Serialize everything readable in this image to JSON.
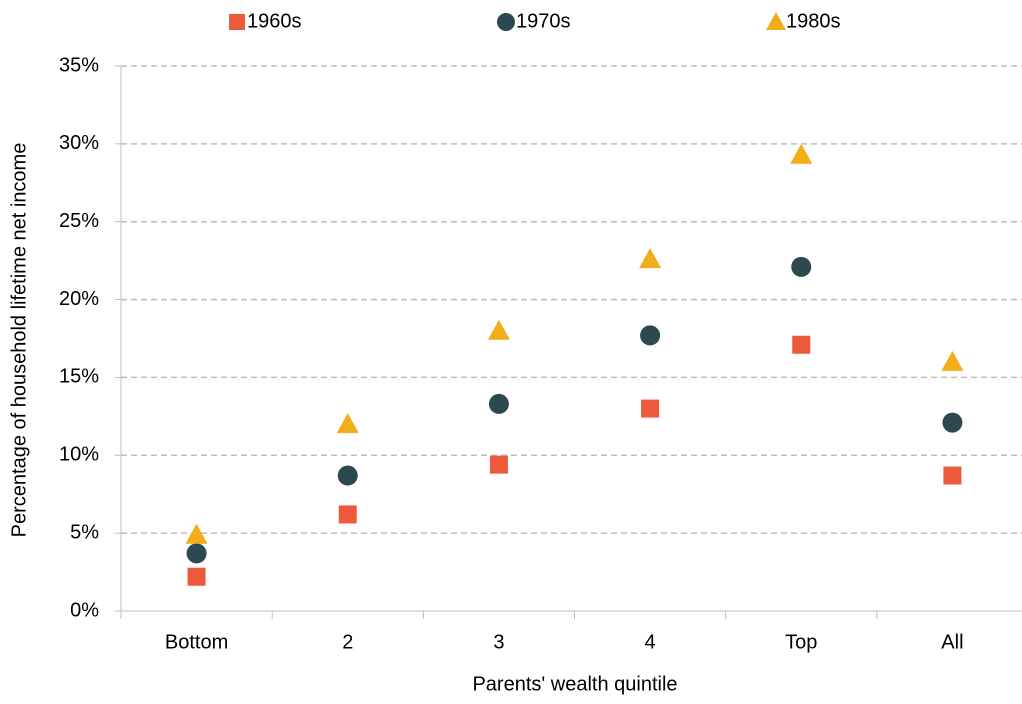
{
  "chart_data": {
    "type": "scatter",
    "x_label": "Parents' wealth quintile",
    "y_label": "Percentage of household lifetime net income",
    "categories": [
      "Bottom",
      "2",
      "3",
      "4",
      "Top",
      "All"
    ],
    "series": [
      {
        "name": "1960s",
        "color": "#ec5a3b",
        "marker": "square",
        "values": [
          2.2,
          6.2,
          9.4,
          13.0,
          17.1,
          8.7
        ]
      },
      {
        "name": "1970s",
        "color": "#2c4850",
        "marker": "circle",
        "values": [
          3.7,
          8.7,
          13.3,
          17.7,
          22.1,
          12.1
        ]
      },
      {
        "name": "1980s",
        "color": "#f1ad1a",
        "marker": "triangle",
        "values": [
          4.9,
          12.0,
          18.0,
          22.6,
          29.3,
          16.0
        ]
      }
    ],
    "ylim": [
      0,
      35
    ],
    "yticks": [
      {
        "value": 0,
        "label": "0%"
      },
      {
        "value": 5,
        "label": "5%"
      },
      {
        "value": 10,
        "label": "10%"
      },
      {
        "value": 15,
        "label": "15%"
      },
      {
        "value": 20,
        "label": "20%"
      },
      {
        "value": 25,
        "label": "25%"
      },
      {
        "value": 30,
        "label": "30%"
      },
      {
        "value": 35,
        "label": "35%"
      }
    ],
    "grid": true,
    "legend": "top"
  }
}
